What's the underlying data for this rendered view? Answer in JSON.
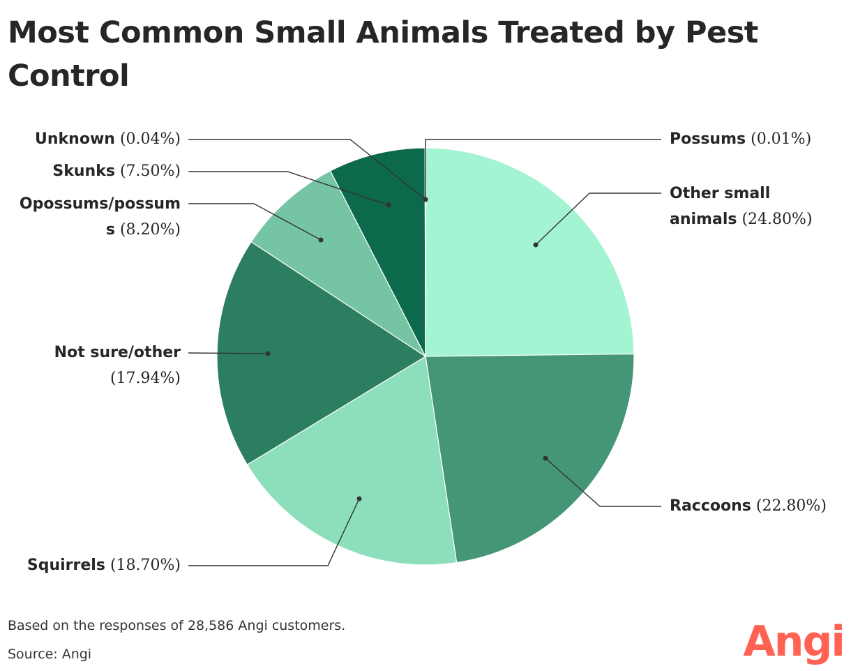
{
  "title": "Most Common Small Animals Treated by Pest Control",
  "chart_data": {
    "type": "pie",
    "title": "Most Common Small Animals Treated by Pest Control",
    "slices": [
      {
        "name": "Possums",
        "value": 0.01,
        "value_label": "(0.01%)",
        "color": "#a6f4d3"
      },
      {
        "name": "Other small animals",
        "value": 24.8,
        "value_label": "(24.80%)",
        "color": "#a3f4d2"
      },
      {
        "name": "Raccoons",
        "value": 22.8,
        "value_label": "(22.80%)",
        "color": "#459677"
      },
      {
        "name": "Squirrels",
        "value": 18.7,
        "value_label": "(18.70%)",
        "color": "#8ddebb"
      },
      {
        "name": "Not sure/other",
        "value": 17.94,
        "value_label": "(17.94%)",
        "color": "#2c7e60"
      },
      {
        "name": "Opossums/possums",
        "value": 8.2,
        "value_label": "(8.20%)",
        "color": "#75c5a4"
      },
      {
        "name": "Skunks",
        "value": 7.5,
        "value_label": "(7.50%)",
        "color": "#0d694c"
      },
      {
        "name": "Unknown",
        "value": 0.04,
        "value_label": "(0.04%)",
        "color": "#0d694c"
      }
    ]
  },
  "labels": {
    "possums": {
      "name": "Possums",
      "value": "(0.01%)"
    },
    "other": {
      "name1": "Other small",
      "name2": "animals",
      "value": "(24.80%)"
    },
    "raccoons": {
      "name": "Raccoons",
      "value": "(22.80%)"
    },
    "squirrels": {
      "name": "Squirrels",
      "value": "(18.70%)"
    },
    "notsure": {
      "name": "Not sure/other",
      "value": "(17.94%)"
    },
    "opossums": {
      "name1": "Opossums/possum",
      "name2": "s",
      "value": "(8.20%)"
    },
    "skunks": {
      "name": "Skunks",
      "value": "(7.50%)"
    },
    "unknown": {
      "name": "Unknown",
      "value": "(0.04%)"
    }
  },
  "footer": {
    "note": "Based on the responses of 28,586 Angi customers.",
    "source": "Source: Angi"
  },
  "logo": "Angi"
}
